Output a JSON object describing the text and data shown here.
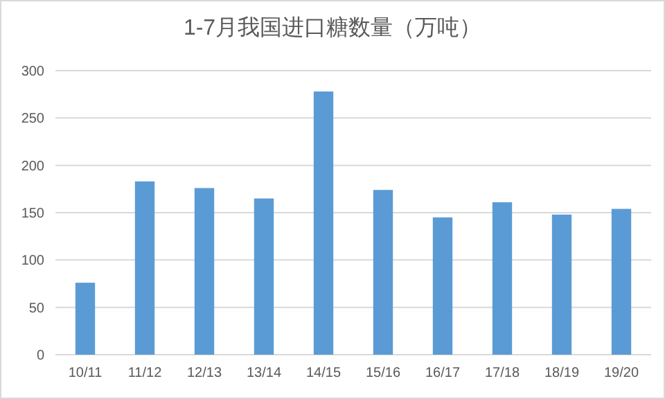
{
  "chart_data": {
    "type": "bar",
    "title": "1-7月我国进口糖数量（万吨）",
    "categories": [
      "10/11",
      "11/12",
      "12/13",
      "13/14",
      "14/15",
      "15/16",
      "16/17",
      "17/18",
      "18/19",
      "19/20"
    ],
    "values": [
      76,
      183,
      176,
      165,
      278,
      174,
      145,
      161,
      148,
      154
    ],
    "color": "#5b9bd5",
    "ylim": [
      0,
      300
    ],
    "yticks": [
      0,
      50,
      100,
      150,
      200,
      250,
      300
    ],
    "grid": "y"
  }
}
